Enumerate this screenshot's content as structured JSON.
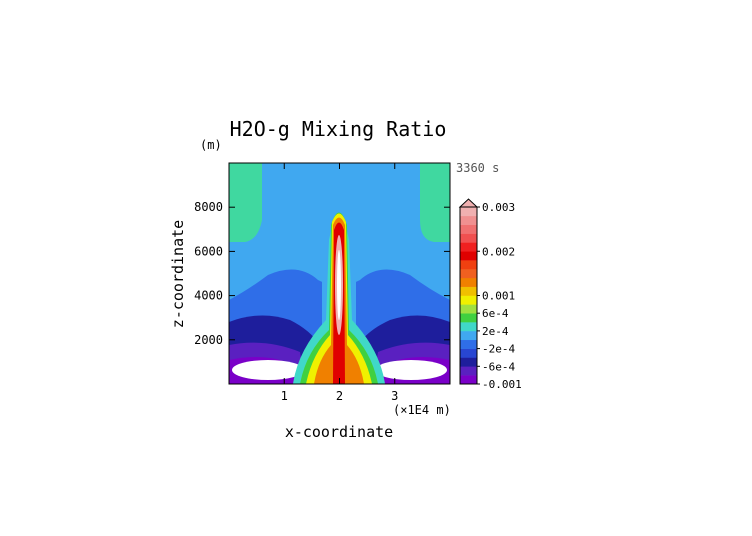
{
  "chart_data": {
    "type": "contour",
    "title": "H2O-g Mixing Ratio",
    "xlabel": "x-coordinate",
    "ylabel": "z-coordinate",
    "y_unit": "(m)",
    "x_unit": "(×1E4 m)",
    "time_label": "3360 s",
    "xlim": [
      0,
      4
    ],
    "xticks": [
      1,
      2,
      3
    ],
    "ylim": [
      0,
      10000
    ],
    "yticks": [
      2000,
      4000,
      6000,
      8000
    ],
    "colorbar": {
      "lim": [
        -0.001,
        0.003
      ],
      "ticks": [
        {
          "value": -0.001,
          "label": "-0.001"
        },
        {
          "value": -0.0006,
          "label": "-6e-4"
        },
        {
          "value": -0.0002,
          "label": "-2e-4"
        },
        {
          "value": 0.0002,
          "label": "2e-4"
        },
        {
          "value": 0.0006,
          "label": "6e-4"
        },
        0.001,
        0.002,
        0.003
      ],
      "colors": [
        "#7a00c8",
        "#5a20c0",
        "#1e1e9c",
        "#2846d2",
        "#2f6ee8",
        "#40a8f0",
        "#40d8c8",
        "#40d040",
        "#a0e040",
        "#f0f000",
        "#f0c000",
        "#f08000",
        "#f06020",
        "#f04010",
        "#e00000",
        "#f02020",
        "#f05050",
        "#f07070",
        "#f09090",
        "#f0b0b0"
      ]
    }
  }
}
